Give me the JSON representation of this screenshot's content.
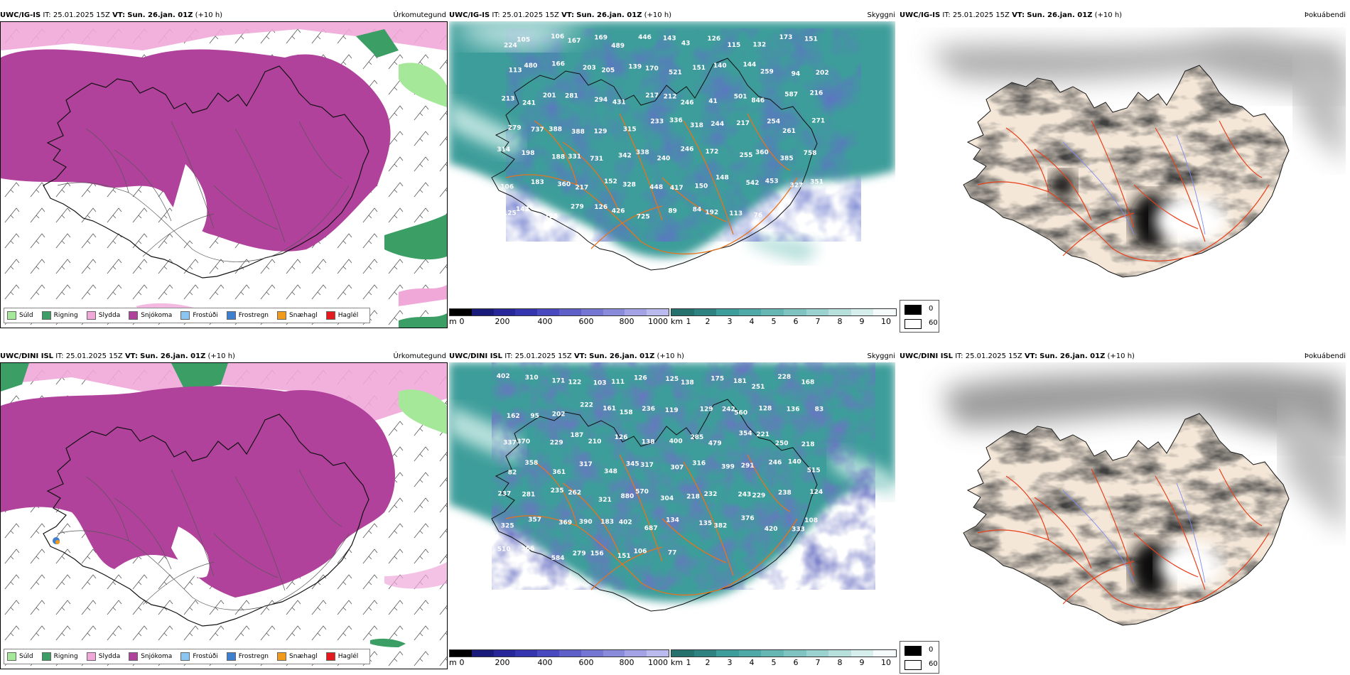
{
  "colors": {
    "suld": "#a5e89a",
    "rigning": "#3b9e65",
    "slydda": "#f0a8d8",
    "snjokoma": "#b1429c",
    "frostudi": "#8ac6f2",
    "frostregn": "#3f7fd0",
    "snaehagl": "#f39a1b",
    "haglel": "#e41a1c",
    "sea_teal": "#3d9d9a",
    "cloud_low": "#2a2f9a",
    "land_tan": "#f4e7d8",
    "roads": "#e8731a"
  },
  "rows": [
    {
      "model": "UWC/IG-IS",
      "it_label": "IT:",
      "it_value": "25.01.2025 15Z",
      "vt_label": "VT:",
      "vt_value": "Sun. 26.jan. 01Z",
      "lead": "(+10 h)",
      "titles": {
        "precip": "Úrkomutegund",
        "visibility": "Skyggni",
        "fog": "Þokuábendi"
      },
      "cloud_labels": [
        "224",
        "105",
        "106",
        "167",
        "169",
        "489",
        "446",
        "143",
        "43",
        "126",
        "115",
        "132",
        "173",
        "151",
        "113",
        "480",
        "166",
        "203",
        "205",
        "139",
        "170",
        "521",
        "151",
        "140",
        "144",
        "259",
        "94",
        "202",
        "213",
        "241",
        "201",
        "281",
        "294",
        "431",
        "217",
        "212",
        "246",
        "41",
        "501",
        "846",
        "587",
        "216",
        "279",
        "737",
        "388",
        "388",
        "129",
        "315",
        "233",
        "336",
        "318",
        "244",
        "217",
        "254",
        "261",
        "271",
        "314",
        "198",
        "188",
        "331",
        "731",
        "342",
        "338",
        "240",
        "246",
        "172",
        "255",
        "360",
        "385",
        "758",
        "106",
        "183",
        "360",
        "217",
        "152",
        "328",
        "448",
        "417",
        "150",
        "148",
        "542",
        "453",
        "327",
        "351",
        "125",
        "142",
        "125",
        "279",
        "126",
        "426",
        "725",
        "89",
        "84",
        "192",
        "113",
        "76"
      ],
      "precip_legend": [
        "Súld",
        "Rigning",
        "Slydda",
        "Snjókoma",
        "Frostúði",
        "Frostregn",
        "Snæhagl",
        "Haglél"
      ],
      "cloud_scale": {
        "unit": "m",
        "ticks": [
          "0",
          "200",
          "400",
          "600",
          "800",
          "1000"
        ]
      },
      "vis_scale": {
        "unit": "km",
        "ticks": [
          "1",
          "2",
          "3",
          "4",
          "5",
          "6",
          "7",
          "8",
          "9",
          "10"
        ]
      },
      "fog_scale": [
        "0",
        "60"
      ]
    },
    {
      "model": "UWC/DINI ISL",
      "it_label": "IT:",
      "it_value": "25.01.2025 15Z",
      "vt_label": "VT:",
      "vt_value": "Sun. 26.jan. 01Z",
      "lead": "(+10 h)",
      "titles": {
        "precip": "Úrkomutegund",
        "visibility": "Skyggni",
        "fog": "Þokuábendi"
      },
      "cloud_labels": [
        "402",
        "310",
        "171",
        "122",
        "103",
        "111",
        "126",
        "125",
        "138",
        "175",
        "181",
        "251",
        "228",
        "168",
        "162",
        "95",
        "202",
        "222",
        "161",
        "158",
        "236",
        "119",
        "129",
        "242",
        "560",
        "128",
        "136",
        "83",
        "337",
        "370",
        "229",
        "187",
        "210",
        "126",
        "138",
        "400",
        "285",
        "479",
        "354",
        "221",
        "250",
        "218",
        "82",
        "358",
        "361",
        "317",
        "348",
        "345",
        "317",
        "307",
        "316",
        "399",
        "291",
        "246",
        "140",
        "515",
        "237",
        "281",
        "235",
        "262",
        "321",
        "880",
        "570",
        "304",
        "218",
        "232",
        "243",
        "229",
        "238",
        "124",
        "325",
        "357",
        "369",
        "390",
        "183",
        "402",
        "687",
        "134",
        "135",
        "382",
        "376",
        "420",
        "333",
        "108",
        "510",
        "366",
        "584",
        "279",
        "156",
        "151",
        "106",
        "77"
      ],
      "precip_legend": [
        "Súld",
        "Rigning",
        "Slydda",
        "Snjókoma",
        "Frostúði",
        "Frostregn",
        "Snæhagl",
        "Haglél"
      ],
      "cloud_scale": {
        "unit": "m",
        "ticks": [
          "0",
          "200",
          "400",
          "600",
          "800",
          "1000"
        ]
      },
      "vis_scale": {
        "unit": "km",
        "ticks": [
          "1",
          "2",
          "3",
          "4",
          "5",
          "6",
          "7",
          "8",
          "9",
          "10"
        ]
      },
      "fog_scale": [
        "0",
        "60"
      ]
    }
  ]
}
